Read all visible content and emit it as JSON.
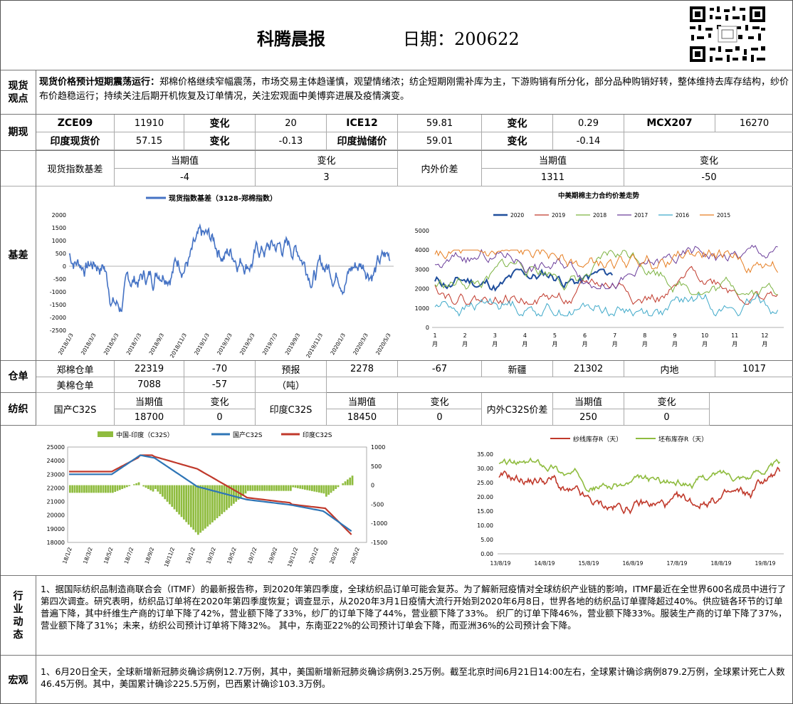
{
  "header": {
    "title": "科腾晨报",
    "date_label": "日期：200622"
  },
  "view": {
    "side_label": "现货观点",
    "headline": "现货价格预计短期震荡运行：",
    "text": "郑棉价格继续窄幅震荡，市场交易主体趋谨慎，观望情绪浓；纺企短期刚需补库为主，下游购销有所分化，部分品种购销好转，整体维持去库存结构，纱价布价趋稳运行；持续关注后期开机恢复及订单情况，关注宏观面中美博弈进展及疫情演变。"
  },
  "futures": {
    "side_label": "期现",
    "row1": [
      "ZCE09",
      "11910",
      "变化",
      "20",
      "ICE12",
      "59.81",
      "变化",
      "0.29",
      "MCX207",
      "16270"
    ],
    "row2": [
      "印度现货价",
      "57.15",
      "变化",
      "-0.13",
      "印度抛储价",
      "59.01",
      "变化",
      "-0.14"
    ]
  },
  "basis": {
    "side_label": "基差",
    "label1": "现货指数基差",
    "col_current": "当期值",
    "col_change": "变化",
    "value1": "-4",
    "change1": "3",
    "label2": "内外价差",
    "value2": "1311",
    "change2": "-50"
  },
  "chart1": {
    "legend": "现货指数基差（3128-郑棉指数）",
    "color": "#4472c4",
    "yticks": [
      "2000",
      "1500",
      "1000",
      "500",
      "0",
      "-500",
      "-1000",
      "-1500",
      "-2000",
      "-2500"
    ],
    "xticks": [
      "2018/1/3",
      "2018/3/3",
      "2018/5/3",
      "2018/7/3",
      "2018/9/3",
      "2018/11/3",
      "2019/1/3",
      "2019/3/3",
      "2019/5/3",
      "2019/7/3",
      "2019/9/3",
      "2019/11/3",
      "2020/1/3",
      "2020/3/3",
      "2020/5/3"
    ]
  },
  "chart2": {
    "title": "中美期棉主力合约价差走势",
    "legend": [
      "2020",
      "2019",
      "2018",
      "2017",
      "2016",
      "2015"
    ],
    "colors": [
      "#1f4e9c",
      "#c0392b",
      "#7cb342",
      "#6a3d9a",
      "#3fa9c9",
      "#e67e22"
    ],
    "yticks": [
      "5000",
      "4000",
      "3000",
      "2000",
      "1000",
      "0"
    ],
    "xticks": [
      "1",
      "2",
      "3",
      "4",
      "5",
      "6",
      "7",
      "8",
      "9",
      "10",
      "11",
      "12"
    ],
    "month_suffix": "月"
  },
  "warehouse": {
    "side_label": "仓单",
    "row1": [
      "郑棉仓单",
      "22319",
      "-70",
      "预报",
      "2278",
      "-67",
      "新疆",
      "21302",
      "内地",
      "1017"
    ],
    "row2": [
      "美棉仓单",
      "7088",
      "-57",
      "（吨）"
    ]
  },
  "textile": {
    "side_label": "纺织",
    "label_a": "国产C32S",
    "label_b": "印度C32S",
    "label_c": "内外C32S价差",
    "col_current": "当期值",
    "col_change": "变化",
    "value_a": "18700",
    "change_a": "0",
    "value_b": "18450",
    "change_b": "0",
    "value_c": "250",
    "change_c": "0"
  },
  "chart3": {
    "legend": [
      "中国-印度（C32S）",
      "国产C32S",
      "印度C32S"
    ],
    "colors": [
      "#8fbc3f",
      "#2e75b6",
      "#c0392b"
    ],
    "yticks_left": [
      "25000",
      "24000",
      "23000",
      "22000",
      "21000",
      "20000",
      "19000",
      "18000"
    ],
    "yticks_right": [
      "1000",
      "500",
      "0",
      "-500",
      "-1000",
      "-1500"
    ],
    "xticks": [
      "18/1/2",
      "18/3/2",
      "18/5/2",
      "18/7/2",
      "18/9/2",
      "18/11/2",
      "19/1/2",
      "19/3/2",
      "19/5/2",
      "19/7/2",
      "19/9/2",
      "19/11/2",
      "20/1/2",
      "20/3/2",
      "20/5/2"
    ]
  },
  "chart4": {
    "legend": [
      "纱线库存R（天）",
      "坯布库存R（天）"
    ],
    "colors": [
      "#c0392b",
      "#8fbc3f"
    ],
    "yticks": [
      "35.00",
      "30.00",
      "25.00",
      "20.00",
      "15.00",
      "10.00",
      "5.00",
      "0.00"
    ],
    "xticks": [
      "13/8/19",
      "14/8/19",
      "15/8/19",
      "16/8/19",
      "17/8/19",
      "18/8/19",
      "19/8/19"
    ]
  },
  "industry": {
    "side_label": "行业动态",
    "text": "1、据国际纺织品制造商联合会（ITMF）的最新报告称，到2020年第四季度，全球纺织品订单可能会复苏。为了解新冠疫情对全球纺织产业链的影响，ITMF最近在全世界600名成员中进行了第四次调查。研究表明，纺织品订单将在2020年第四季度恢复；调查显示，从2020年3月1日疫情大流行开始到2020年6月8日，世界各地的纺织品订单骤降超过40%。供应链各环节的订单普遍下降，其中纤维生产商的订单下降了42%，营业额下降了33%，纱厂的订单下降了44%，营业额下降了33%。 织厂的订单下降46%，营业额下降33%。服装生产商的订单下降了37%，营业额下降了31%；未来，纺织公司预计订单将下降32%。 其中，东南亚22%的公司预计订单会下降，而亚洲36%的公司预计会下降。"
  },
  "macro": {
    "side_label": "宏观",
    "text": "1、6月20日全天，全球新增新冠肺炎确诊病例12.7万例，其中，美国新增新冠肺炎确诊病例3.25万例。截至北京时间6月21日14:00左右，全球累计确诊病例879.2万例，全球累计死亡人数46.45万例。其中，美国累计确诊225.5万例，巴西累计确诊103.3万例。"
  }
}
